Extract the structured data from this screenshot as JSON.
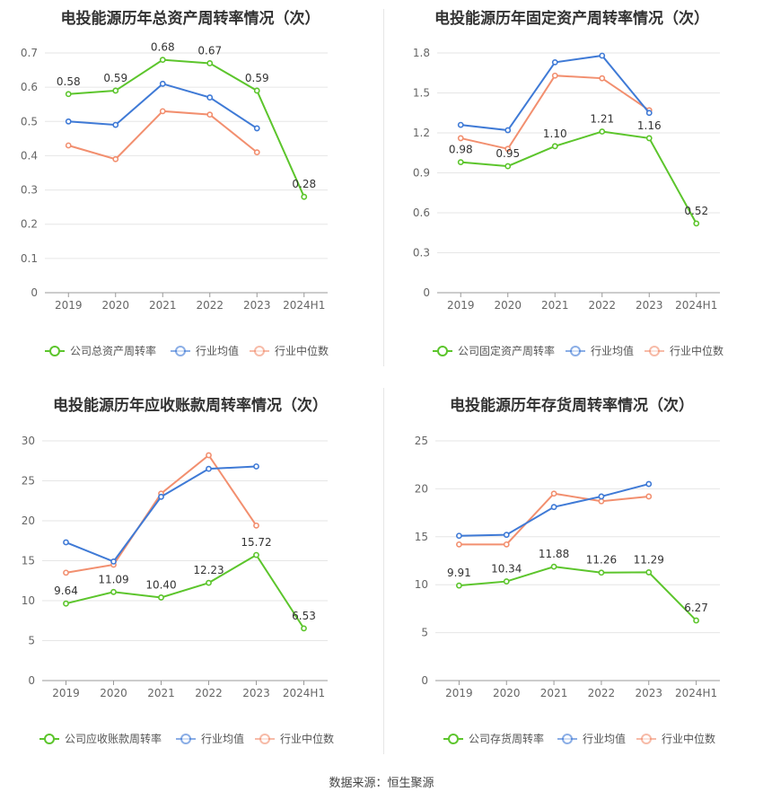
{
  "footer": "数据来源：恒生聚源",
  "colors": {
    "company": "#5cc52c",
    "industry_avg": "#3f7ad6",
    "industry_median": "#f28f6f"
  },
  "chart_data": [
    {
      "type": "line",
      "title": "电投能源历年总资产周转率情况（次）",
      "categories": [
        "2019",
        "2020",
        "2021",
        "2022",
        "2023",
        "2024H1"
      ],
      "ylim": [
        0,
        0.7
      ],
      "yticks": [
        "0",
        "0.1",
        "0.2",
        "0.3",
        "0.4",
        "0.5",
        "0.6",
        "0.7"
      ],
      "grid": true,
      "legend_position": "bottom",
      "series": [
        {
          "name": "公司总资产周转率",
          "values": [
            0.58,
            0.59,
            0.68,
            0.67,
            0.59,
            0.28
          ],
          "labels": [
            "0.58",
            "0.59",
            "0.68",
            "0.67",
            "0.59",
            "0.28"
          ]
        },
        {
          "name": "行业均值",
          "values": [
            0.5,
            0.49,
            0.61,
            0.57,
            0.48,
            null
          ]
        },
        {
          "name": "行业中位数",
          "values": [
            0.43,
            0.39,
            0.53,
            0.52,
            0.41,
            null
          ]
        }
      ]
    },
    {
      "type": "line",
      "title": "电投能源历年固定资产周转率情况（次）",
      "categories": [
        "2019",
        "2020",
        "2021",
        "2022",
        "2023",
        "2024H1"
      ],
      "ylim": [
        0,
        1.8
      ],
      "yticks": [
        "0",
        "0.3",
        "0.6",
        "0.9",
        "1.2",
        "1.5",
        "1.8"
      ],
      "grid": true,
      "legend_position": "bottom",
      "series": [
        {
          "name": "公司固定资产周转率",
          "values": [
            0.98,
            0.95,
            1.1,
            1.21,
            1.16,
            0.52
          ],
          "labels": [
            "0.98",
            "0.95",
            "1.10",
            "1.21",
            "1.16",
            "0.52"
          ]
        },
        {
          "name": "行业均值",
          "values": [
            1.26,
            1.22,
            1.73,
            1.78,
            1.35,
            null
          ]
        },
        {
          "name": "行业中位数",
          "values": [
            1.16,
            1.08,
            1.63,
            1.61,
            1.37,
            null
          ]
        }
      ]
    },
    {
      "type": "line",
      "title": "电投能源历年应收账款周转率情况（次）",
      "categories": [
        "2019",
        "2020",
        "2021",
        "2022",
        "2023",
        "2024H1"
      ],
      "ylim": [
        0,
        30
      ],
      "yticks": [
        "0",
        "5",
        "10",
        "15",
        "20",
        "25",
        "30"
      ],
      "grid": true,
      "legend_position": "bottom",
      "series": [
        {
          "name": "公司应收账款周转率",
          "values": [
            9.64,
            11.09,
            10.4,
            12.23,
            15.72,
            6.53
          ],
          "labels": [
            "9.64",
            "11.09",
            "10.40",
            "12.23",
            "15.72",
            "6.53"
          ]
        },
        {
          "name": "行业均值",
          "values": [
            17.3,
            14.9,
            23.0,
            26.5,
            26.8,
            null
          ]
        },
        {
          "name": "行业中位数",
          "values": [
            13.5,
            14.5,
            23.4,
            28.2,
            19.4,
            null
          ]
        }
      ]
    },
    {
      "type": "line",
      "title": "电投能源历年存货周转率情况（次）",
      "categories": [
        "2019",
        "2020",
        "2021",
        "2022",
        "2023",
        "2024H1"
      ],
      "ylim": [
        0,
        25
      ],
      "yticks": [
        "0",
        "5",
        "10",
        "15",
        "20",
        "25"
      ],
      "grid": true,
      "legend_position": "bottom",
      "series": [
        {
          "name": "公司存货周转率",
          "values": [
            9.91,
            10.34,
            11.88,
            11.26,
            11.29,
            6.27
          ],
          "labels": [
            "9.91",
            "10.34",
            "11.88",
            "11.26",
            "11.29",
            "6.27"
          ]
        },
        {
          "name": "行业均值",
          "values": [
            15.1,
            15.2,
            18.1,
            19.2,
            20.5,
            null
          ]
        },
        {
          "name": "行业中位数",
          "values": [
            14.2,
            14.2,
            19.5,
            18.7,
            19.2,
            null
          ]
        }
      ]
    }
  ]
}
